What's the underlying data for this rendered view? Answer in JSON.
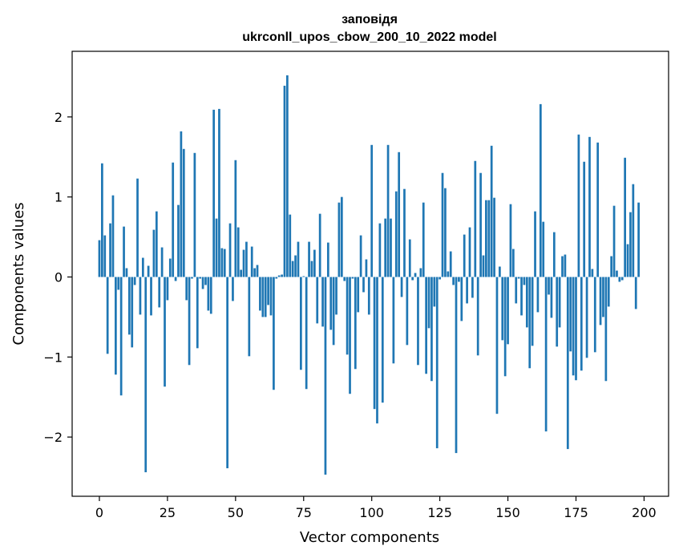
{
  "chart_data": {
    "type": "bar",
    "title": [
      "заповідя",
      "ukrconll_upos_cbow_200_10_2022 model"
    ],
    "xlabel": "Vector components",
    "ylabel": "Components values",
    "xlim": [
      -10,
      209
    ],
    "ylim": [
      -2.74,
      2.82
    ],
    "xticks": [
      0,
      25,
      50,
      75,
      100,
      125,
      150,
      175,
      200
    ],
    "yticks": [
      -2,
      -1,
      0,
      1,
      2
    ],
    "ytick_labels": [
      "−2",
      "−1",
      "0",
      "1",
      "2"
    ],
    "bar_color": "#1f77b4",
    "grid": false,
    "values": [
      0.46,
      1.42,
      0.52,
      -0.96,
      0.67,
      1.02,
      -1.22,
      -0.16,
      -1.48,
      0.63,
      0.11,
      -0.72,
      -0.88,
      -0.1,
      1.23,
      -0.47,
      0.24,
      -2.44,
      0.14,
      -0.48,
      0.59,
      0.82,
      -0.38,
      0.37,
      -1.37,
      -0.29,
      0.23,
      1.43,
      -0.05,
      0.9,
      1.82,
      1.6,
      -0.29,
      -1.1,
      -0.02,
      1.55,
      -0.89,
      -0.02,
      -0.15,
      -0.1,
      -0.42,
      -0.46,
      2.09,
      0.73,
      2.1,
      0.36,
      0.35,
      -2.39,
      0.67,
      -0.3,
      1.46,
      0.62,
      0.09,
      0.34,
      0.44,
      -0.99,
      0.38,
      0.11,
      0.15,
      -0.42,
      -0.5,
      -0.5,
      -0.35,
      -0.48,
      -1.41,
      -0.02,
      0.02,
      0.03,
      2.39,
      2.52,
      0.78,
      0.2,
      0.27,
      0.44,
      -1.16,
      0.01,
      -1.4,
      0.44,
      0.2,
      0.34,
      -0.58,
      0.79,
      -0.62,
      -2.47,
      0.43,
      -0.66,
      -0.85,
      -0.47,
      0.93,
      1.0,
      -0.05,
      -0.97,
      -1.46,
      -0.02,
      -1.15,
      -0.44,
      0.52,
      -0.19,
      0.22,
      -0.47,
      1.65,
      -1.65,
      -1.83,
      0.67,
      -1.57,
      0.73,
      1.65,
      0.73,
      -1.08,
      1.07,
      1.56,
      -0.25,
      1.1,
      -0.85,
      0.47,
      -0.04,
      0.05,
      -1.1,
      0.11,
      0.93,
      -1.21,
      -0.64,
      -1.3,
      -0.37,
      -2.14,
      -0.03,
      1.3,
      1.11,
      0.07,
      0.32,
      -0.1,
      -2.2,
      -0.06,
      -0.55,
      0.53,
      -0.33,
      0.62,
      -0.26,
      1.45,
      -0.98,
      1.3,
      0.27,
      0.96,
      0.96,
      1.64,
      0.99,
      -1.71,
      0.13,
      -0.79,
      -1.24,
      -0.84,
      0.91,
      0.35,
      -0.33,
      -0.02,
      -0.48,
      -0.1,
      -0.63,
      -1.14,
      -0.86,
      0.82,
      -0.44,
      2.16,
      0.69,
      -1.93,
      -0.22,
      -0.51,
      0.56,
      -0.87,
      -0.63,
      0.26,
      0.28,
      -2.15,
      -0.93,
      -1.23,
      -1.29,
      1.78,
      -1.17,
      1.44,
      -1.01,
      1.75,
      0.1,
      -0.94,
      1.68,
      -0.6,
      -0.5,
      -1.3,
      -0.37,
      0.26,
      0.89,
      0.08,
      -0.06,
      -0.04,
      1.49,
      0.41,
      0.81,
      1.16,
      -0.4,
      0.93
    ]
  }
}
